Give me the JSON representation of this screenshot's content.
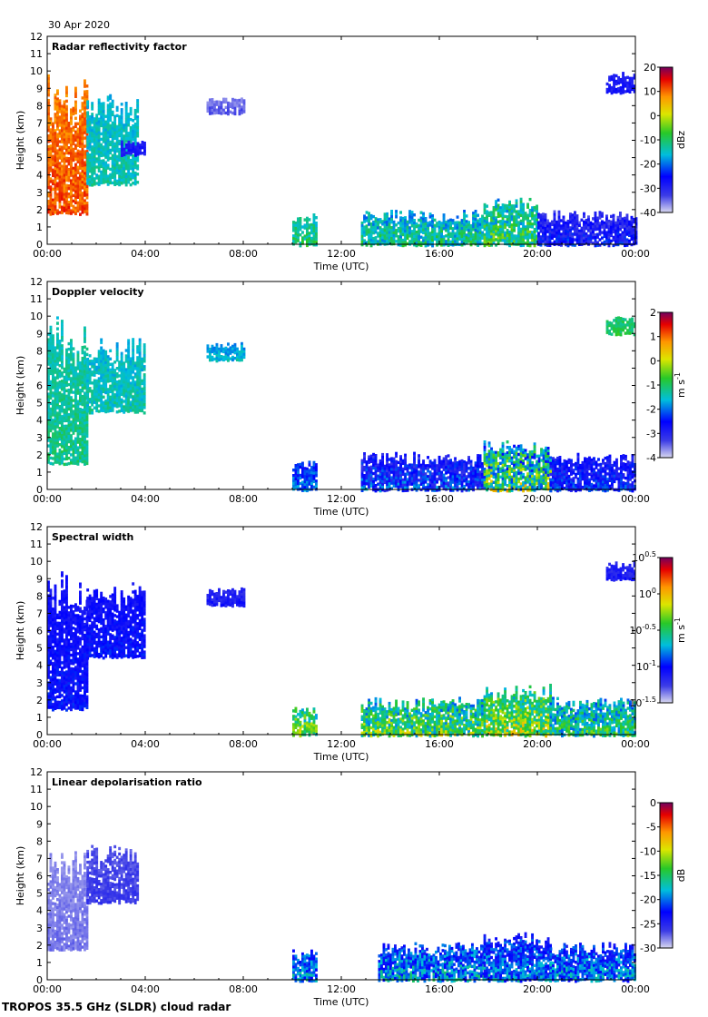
{
  "date": "30 Apr 2020",
  "footer": "TROPOS 35.5 GHz (SLDR) cloud radar",
  "chart_data": [
    {
      "type": "heatmap",
      "title": "Radar reflectivity factor",
      "xlabel": "Time (UTC)",
      "ylabel": "Height (km)",
      "xticks": [
        "00:00",
        "04:00",
        "08:00",
        "12:00",
        "16:00",
        "20:00",
        "00:00"
      ],
      "xlim_hours": [
        0,
        24
      ],
      "ylim": [
        0,
        12
      ],
      "yticks": [
        "0",
        "1",
        "2",
        "3",
        "4",
        "5",
        "6",
        "7",
        "8",
        "9",
        "10",
        "11",
        "12"
      ],
      "colorbar": {
        "label": "dBz",
        "ticks": [
          "20",
          "10",
          "0",
          "-10",
          "-20",
          "-30",
          "-40"
        ],
        "min": -40,
        "max": 20,
        "palette": "jet"
      },
      "echoes": [
        {
          "t0": 0.0,
          "t1": 1.6,
          "h0": 1.8,
          "h1": 9.8,
          "value_lo": 5,
          "value_hi": 15
        },
        {
          "t0": 1.6,
          "t1": 3.7,
          "h0": 3.5,
          "h1": 8.8,
          "value_lo": -20,
          "value_hi": -10
        },
        {
          "t0": 3.0,
          "t1": 4.0,
          "h0": 5.2,
          "h1": 6.0,
          "value_lo": -32,
          "value_hi": -25
        },
        {
          "t0": 6.5,
          "t1": 8.0,
          "h0": 7.6,
          "h1": 8.5,
          "value_lo": -38,
          "value_hi": -32
        },
        {
          "t0": 10.0,
          "t1": 11.0,
          "h0": 0.0,
          "h1": 1.8,
          "value_lo": -20,
          "value_hi": -5
        },
        {
          "t0": 12.8,
          "t1": 17.8,
          "h0": 0.0,
          "h1": 2.0,
          "value_lo": -25,
          "value_hi": -5
        },
        {
          "t0": 17.8,
          "t1": 20.0,
          "h0": 0.0,
          "h1": 2.8,
          "value_lo": -25,
          "value_hi": 0
        },
        {
          "t0": 20.0,
          "t1": 24.0,
          "h0": 0.0,
          "h1": 2.0,
          "value_lo": -38,
          "value_hi": -20
        },
        {
          "t0": 22.8,
          "t1": 24.0,
          "h0": 8.8,
          "h1": 10.0,
          "value_lo": -32,
          "value_hi": -25
        }
      ]
    },
    {
      "type": "heatmap",
      "title": "Doppler velocity",
      "xlabel": "Time (UTC)",
      "ylabel": "Height (km)",
      "xticks": [
        "00:00",
        "04:00",
        "08:00",
        "12:00",
        "16:00",
        "20:00",
        "00:00"
      ],
      "xlim_hours": [
        0,
        24
      ],
      "ylim": [
        0,
        12
      ],
      "yticks": [
        "0",
        "1",
        "2",
        "3",
        "4",
        "5",
        "6",
        "7",
        "8",
        "9",
        "10",
        "11",
        "12"
      ],
      "colorbar": {
        "label": "m s-1",
        "label_main": "m s",
        "label_sup": "-1",
        "ticks": [
          "2",
          "1",
          "0",
          "-1",
          "-2",
          "-3",
          "-4"
        ],
        "min": -4,
        "max": 2,
        "palette": "jet"
      },
      "echoes": [
        {
          "t0": 0.0,
          "t1": 1.6,
          "h0": 1.5,
          "h1": 10.0,
          "value_lo": -1.8,
          "value_hi": -0.8
        },
        {
          "t0": 1.6,
          "t1": 4.0,
          "h0": 4.5,
          "h1": 8.8,
          "value_lo": -2.0,
          "value_hi": -1.0
        },
        {
          "t0": 6.5,
          "t1": 8.0,
          "h0": 7.5,
          "h1": 8.5,
          "value_lo": -2.2,
          "value_hi": -1.2
        },
        {
          "t0": 10.0,
          "t1": 11.0,
          "h0": 0.0,
          "h1": 1.8,
          "value_lo": -3.0,
          "value_hi": -1.5
        },
        {
          "t0": 12.8,
          "t1": 17.8,
          "h0": 0.0,
          "h1": 2.2,
          "value_lo": -3.8,
          "value_hi": -1.5
        },
        {
          "t0": 17.8,
          "t1": 20.5,
          "h0": 0.0,
          "h1": 3.0,
          "value_lo": -3.5,
          "value_hi": 0.8
        },
        {
          "t0": 20.5,
          "t1": 24.0,
          "h0": 0.0,
          "h1": 2.2,
          "value_lo": -3.5,
          "value_hi": -1.8
        },
        {
          "t0": 22.8,
          "t1": 24.0,
          "h0": 9.0,
          "h1": 10.0,
          "value_lo": -1.5,
          "value_hi": -0.5
        }
      ]
    },
    {
      "type": "heatmap",
      "title": "Spectral width",
      "xlabel": "Time (UTC)",
      "ylabel": "Height (km)",
      "xticks": [
        "00:00",
        "04:00",
        "08:00",
        "12:00",
        "16:00",
        "20:00",
        "00:00"
      ],
      "xlim_hours": [
        0,
        24
      ],
      "ylim": [
        0,
        12
      ],
      "yticks": [
        "0",
        "1",
        "2",
        "3",
        "4",
        "5",
        "6",
        "7",
        "8",
        "9",
        "10",
        "11",
        "12"
      ],
      "colorbar": {
        "label": "m s-1",
        "label_main": "m s",
        "label_sup": "-1",
        "ticks": [
          "10^0.5",
          "10^0",
          "10^-0.5",
          "10^-1",
          "10^-1.5"
        ],
        "ticks_base": "10",
        "ticks_exp": [
          "0.5",
          "0",
          "-0.5",
          "-1",
          "-1.5"
        ],
        "min": -1.5,
        "max": 0.5,
        "palette": "jet"
      },
      "echoes": [
        {
          "t0": 0.0,
          "t1": 1.6,
          "h0": 1.5,
          "h1": 10.0,
          "value_lo": -1.2,
          "value_hi": -0.9
        },
        {
          "t0": 1.6,
          "t1": 4.0,
          "h0": 4.5,
          "h1": 8.8,
          "value_lo": -1.2,
          "value_hi": -0.9
        },
        {
          "t0": 6.5,
          "t1": 8.0,
          "h0": 7.5,
          "h1": 8.5,
          "value_lo": -1.3,
          "value_hi": -1.0
        },
        {
          "t0": 10.0,
          "t1": 11.0,
          "h0": 0.0,
          "h1": 1.8,
          "value_lo": -1.0,
          "value_hi": 0.0
        },
        {
          "t0": 12.8,
          "t1": 17.8,
          "h0": 0.0,
          "h1": 2.2,
          "value_lo": -1.1,
          "value_hi": 0.0
        },
        {
          "t0": 17.8,
          "t1": 20.5,
          "h0": 0.0,
          "h1": 3.0,
          "value_lo": -1.0,
          "value_hi": 0.1
        },
        {
          "t0": 20.5,
          "t1": 24.0,
          "h0": 0.0,
          "h1": 2.2,
          "value_lo": -1.1,
          "value_hi": -0.2
        },
        {
          "t0": 22.8,
          "t1": 24.0,
          "h0": 9.0,
          "h1": 10.0,
          "value_lo": -1.3,
          "value_hi": -1.0
        }
      ]
    },
    {
      "type": "heatmap",
      "title": "Linear depolarisation ratio",
      "xlabel": "Time (UTC)",
      "ylabel": "Height (km)",
      "xticks": [
        "00:00",
        "04:00",
        "08:00",
        "12:00",
        "16:00",
        "20:00",
        "00:00"
      ],
      "xlim_hours": [
        0,
        24
      ],
      "ylim": [
        0,
        12
      ],
      "yticks": [
        "0",
        "1",
        "2",
        "3",
        "4",
        "5",
        "6",
        "7",
        "8",
        "9",
        "10",
        "11",
        "12"
      ],
      "colorbar": {
        "label": "dB",
        "ticks": [
          "0",
          "-5",
          "-10",
          "-15",
          "-20",
          "-25",
          "-30"
        ],
        "min": -30,
        "max": 0,
        "palette": "jet"
      },
      "echoes": [
        {
          "t0": 0.0,
          "t1": 1.6,
          "h0": 1.8,
          "h1": 7.5,
          "value_lo": -29,
          "value_hi": -27
        },
        {
          "t0": 1.6,
          "t1": 3.7,
          "h0": 4.5,
          "h1": 7.8,
          "value_lo": -28,
          "value_hi": -25
        },
        {
          "t0": 10.0,
          "t1": 11.0,
          "h0": 0.0,
          "h1": 1.8,
          "value_lo": -26,
          "value_hi": -15
        },
        {
          "t0": 13.5,
          "t1": 17.8,
          "h0": 0.0,
          "h1": 2.2,
          "value_lo": -27,
          "value_hi": -14
        },
        {
          "t0": 17.8,
          "t1": 20.5,
          "h0": 0.0,
          "h1": 2.8,
          "value_lo": -27,
          "value_hi": -16
        },
        {
          "t0": 20.5,
          "t1": 24.0,
          "h0": 0.0,
          "h1": 2.2,
          "value_lo": -27,
          "value_hi": -15
        }
      ]
    }
  ]
}
